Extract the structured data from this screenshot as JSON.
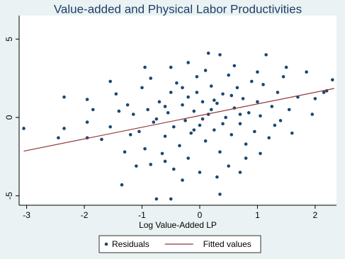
{
  "chart_data": {
    "type": "scatter",
    "title": "Value-added and Physical Labor Productivities",
    "x_label": "Log Value-Added LP",
    "xlim": [
      -3.13,
      2.37
    ],
    "ylim": [
      -5.6,
      6.5
    ],
    "xticks": [
      -3,
      -2,
      -1,
      0,
      1,
      2
    ],
    "yticks": [
      -5,
      0,
      5
    ],
    "grid": false,
    "legend": "bottom",
    "series": [
      {
        "name": "Residuals",
        "kind": "scatter",
        "color": "#1a476f",
        "x": [
          -3.05,
          -2.45,
          -2.35,
          -2.35,
          -1.95,
          -1.95,
          -1.85,
          -1.95,
          -1.7,
          -1.55,
          -1.55,
          -1.45,
          -1.35,
          -1.25,
          -1.2,
          -1.1,
          -1.0,
          -0.95,
          -0.85,
          -0.75,
          -0.5,
          -0.5,
          -0.2,
          0.15,
          0.35,
          0.35,
          1.15,
          1.5,
          2.0,
          2.3,
          1.85,
          2.15,
          1.95,
          2.2,
          1.05,
          0.7,
          -0.3,
          0.0,
          0.5,
          -0.6,
          1.6,
          1.3,
          -0.9,
          -0.8,
          -0.7,
          -0.6,
          -0.55,
          -0.5,
          -0.45,
          -0.4,
          -0.35,
          -0.3,
          -0.25,
          -0.2,
          -0.15,
          -0.1,
          -0.05,
          0.0,
          0.05,
          0.1,
          0.15,
          0.2,
          0.25,
          0.3,
          0.35,
          0.4,
          0.45,
          0.5,
          0.55,
          0.6,
          0.65,
          0.7,
          0.75,
          0.8,
          0.85,
          0.9,
          0.95,
          1.0,
          1.05,
          1.1,
          1.2,
          1.25,
          1.35,
          1.4,
          1.45,
          1.55,
          1.7,
          -1.05,
          -1.15,
          -0.95,
          -0.85,
          -0.75,
          -0.65,
          -0.45,
          -0.2,
          0.1,
          0.3,
          0.6,
          0.8,
          1.0,
          -1.3,
          -1.4,
          0.05,
          0.2,
          -0.1,
          0.4,
          -0.3,
          0.55,
          0.25,
          -0.6,
          0.7,
          -0.05
        ],
        "values": [
          -0.7,
          -1.3,
          1.3,
          -0.7,
          1.15,
          -1.3,
          0.5,
          -0.3,
          -1.4,
          -0.6,
          2.3,
          1.5,
          -4.3,
          0.8,
          -1.1,
          -3.1,
          1.9,
          3.2,
          -3.0,
          -5.2,
          -5.2,
          3.2,
          3.5,
          4.1,
          4.0,
          -4.9,
          4.0,
          3.2,
          1.2,
          2.4,
          2.9,
          1.6,
          0.2,
          1.7,
          -2.3,
          -3.5,
          -4.0,
          -3.5,
          -3.1,
          -2.8,
          -1.0,
          -0.5,
          0.5,
          -0.3,
          1.0,
          -1.2,
          0.3,
          1.6,
          -0.6,
          2.2,
          -1.8,
          0.8,
          -0.2,
          1.3,
          -1.0,
          0.4,
          2.6,
          -0.5,
          1.0,
          -1.5,
          0.2,
          2.0,
          -0.8,
          0.9,
          -2.2,
          1.5,
          0.0,
          2.7,
          -1.1,
          0.6,
          1.9,
          -0.4,
          1.2,
          -1.7,
          0.3,
          2.3,
          -0.9,
          1.0,
          0.1,
          2.1,
          -1.3,
          0.7,
          1.6,
          -0.2,
          2.6,
          0.5,
          1.3,
          -0.9,
          0.2,
          -2.0,
          2.5,
          -0.1,
          -2.3,
          -3.3,
          -2.6,
          3.0,
          -3.8,
          3.3,
          -2.6,
          2.9,
          -2.2,
          0.4,
          -0.1,
          0.5,
          -0.8,
          -0.4,
          1.9,
          1.4,
          1.1,
          0.7,
          0.2,
          1.6
        ]
      },
      {
        "name": "Fitted values",
        "kind": "line",
        "color": "#90353b",
        "x": [
          -3.05,
          2.33
        ],
        "values": [
          -2.15,
          1.85
        ]
      }
    ]
  }
}
